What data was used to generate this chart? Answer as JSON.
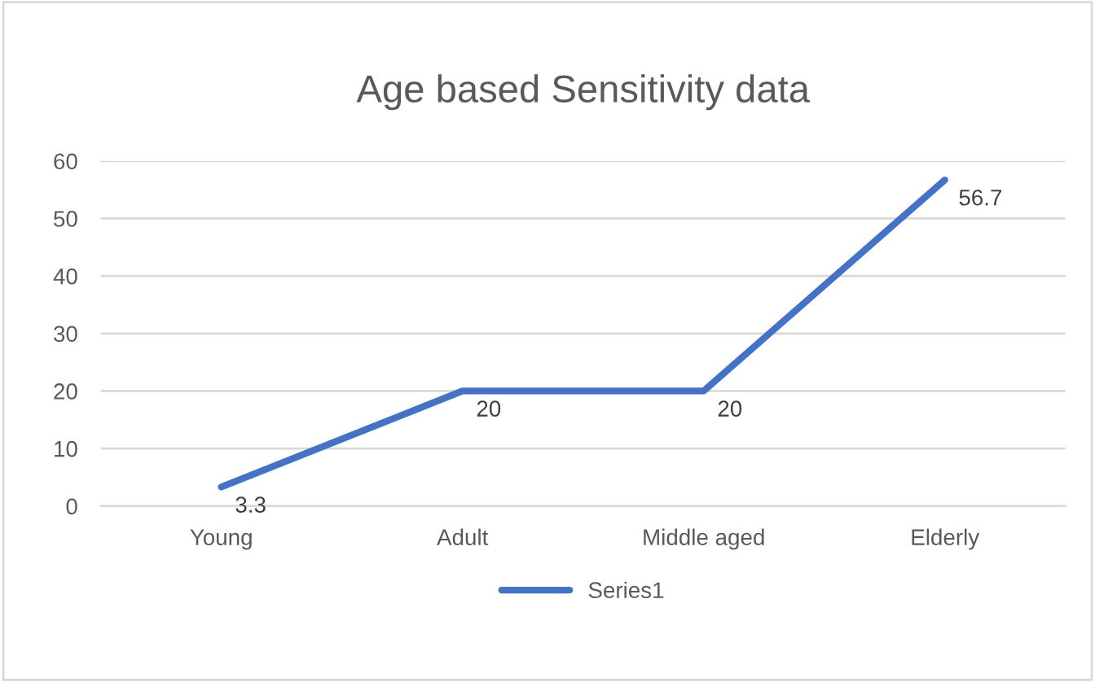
{
  "chart_data": {
    "type": "line",
    "title": "Age based Sensitivity data",
    "categories": [
      "Young",
      "Adult",
      "Middle aged",
      "Elderly"
    ],
    "series": [
      {
        "name": "Series1",
        "color": "#4472c4",
        "values": [
          3.3,
          20,
          20,
          56.7
        ]
      }
    ],
    "ylim": [
      0,
      60
    ],
    "yticks": [
      0,
      10,
      20,
      30,
      40,
      50,
      60
    ],
    "grid": "y",
    "legend": "bottom",
    "data_labels": true,
    "marker": "none",
    "line_style": "solid"
  }
}
